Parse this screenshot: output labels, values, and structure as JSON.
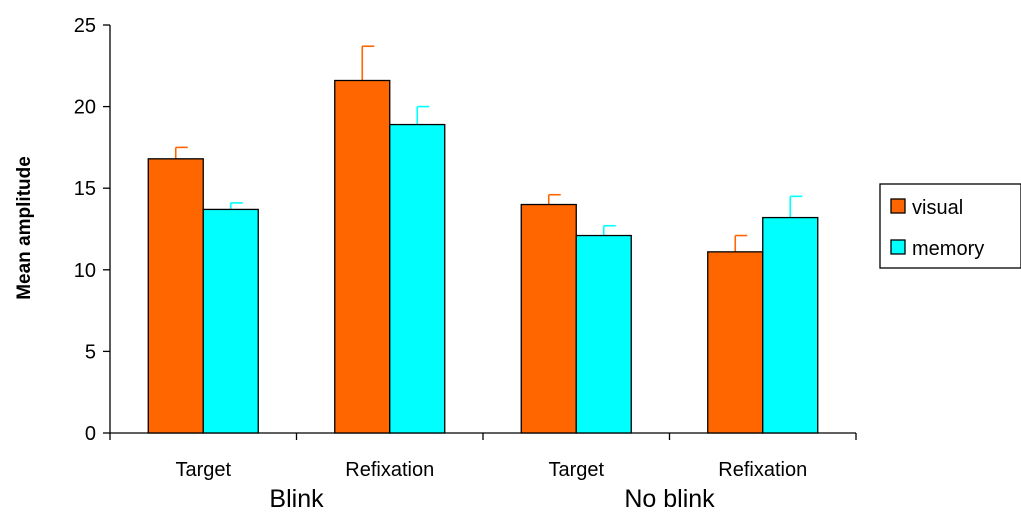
{
  "chart_data": {
    "type": "bar",
    "categories": [
      "Target",
      "Refixation",
      "Target",
      "Refixation"
    ],
    "groups": [
      {
        "label": "Blink",
        "categories": [
          0,
          1
        ]
      },
      {
        "label": "No blink",
        "categories": [
          2,
          3
        ]
      }
    ],
    "series": [
      {
        "name": "visual",
        "color": "#ff6600",
        "error_color": "#ff6600",
        "values": [
          16.8,
          21.6,
          14.0,
          11.1
        ],
        "errors": [
          0.7,
          2.1,
          0.6,
          1.0
        ]
      },
      {
        "name": "memory",
        "color": "#00ffff",
        "error_color": "#00ffff",
        "values": [
          13.7,
          18.9,
          12.1,
          13.2
        ],
        "errors": [
          0.4,
          1.1,
          0.6,
          1.3
        ]
      }
    ],
    "title": "",
    "xlabel": "",
    "ylabel": "Mean amplitude",
    "ylim": [
      0,
      25
    ],
    "yticks": [
      0,
      5,
      10,
      15,
      20,
      25
    ],
    "grid": false,
    "legend": "right"
  }
}
